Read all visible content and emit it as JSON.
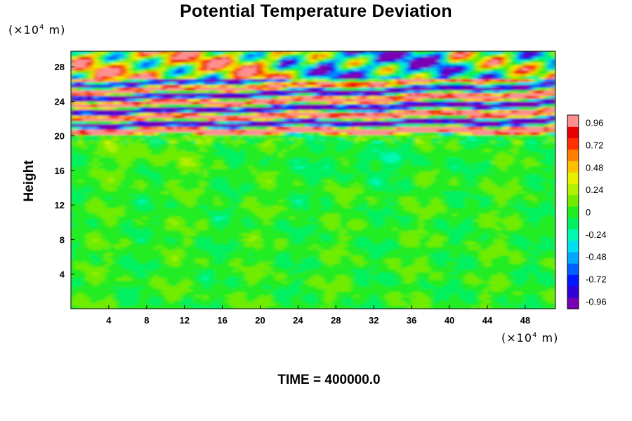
{
  "chart_data": {
    "type": "heatmap",
    "title": "Potential Temperature Deviation",
    "xunit": {
      "prefix": "(×10",
      "exp": "4",
      "suffix": " m)"
    },
    "yunit": {
      "prefix": "(×10",
      "exp": "4",
      "suffix": " m)"
    },
    "ylabel": "Height",
    "xlabel": "",
    "xticks": [
      "4",
      "8",
      "12",
      "16",
      "20",
      "24",
      "28",
      "32",
      "36",
      "40",
      "44",
      "48"
    ],
    "yticks": [
      "4",
      "8",
      "12",
      "16",
      "20",
      "24",
      "28"
    ],
    "xlim": [
      0,
      51.2
    ],
    "ylim": [
      0,
      29.8
    ],
    "colorbar": {
      "min": -1.04,
      "max": 1.04,
      "tick_labels": [
        "0.96",
        "0.72",
        "0.48",
        "0.24",
        "0",
        "-0.24",
        "-0.48",
        "-0.72",
        "-0.96"
      ],
      "colors": [
        "#7a00b4",
        "#3000d8",
        "#0018ff",
        "#0060ff",
        "#00a8ff",
        "#00e0f0",
        "#00f8b0",
        "#00f060",
        "#20ec20",
        "#70ec00",
        "#b0f000",
        "#e8f000",
        "#ffc000",
        "#ff8000",
        "#ff3000",
        "#e80000",
        "#ff9090"
      ]
    },
    "time_label": "TIME = 400000.0"
  }
}
